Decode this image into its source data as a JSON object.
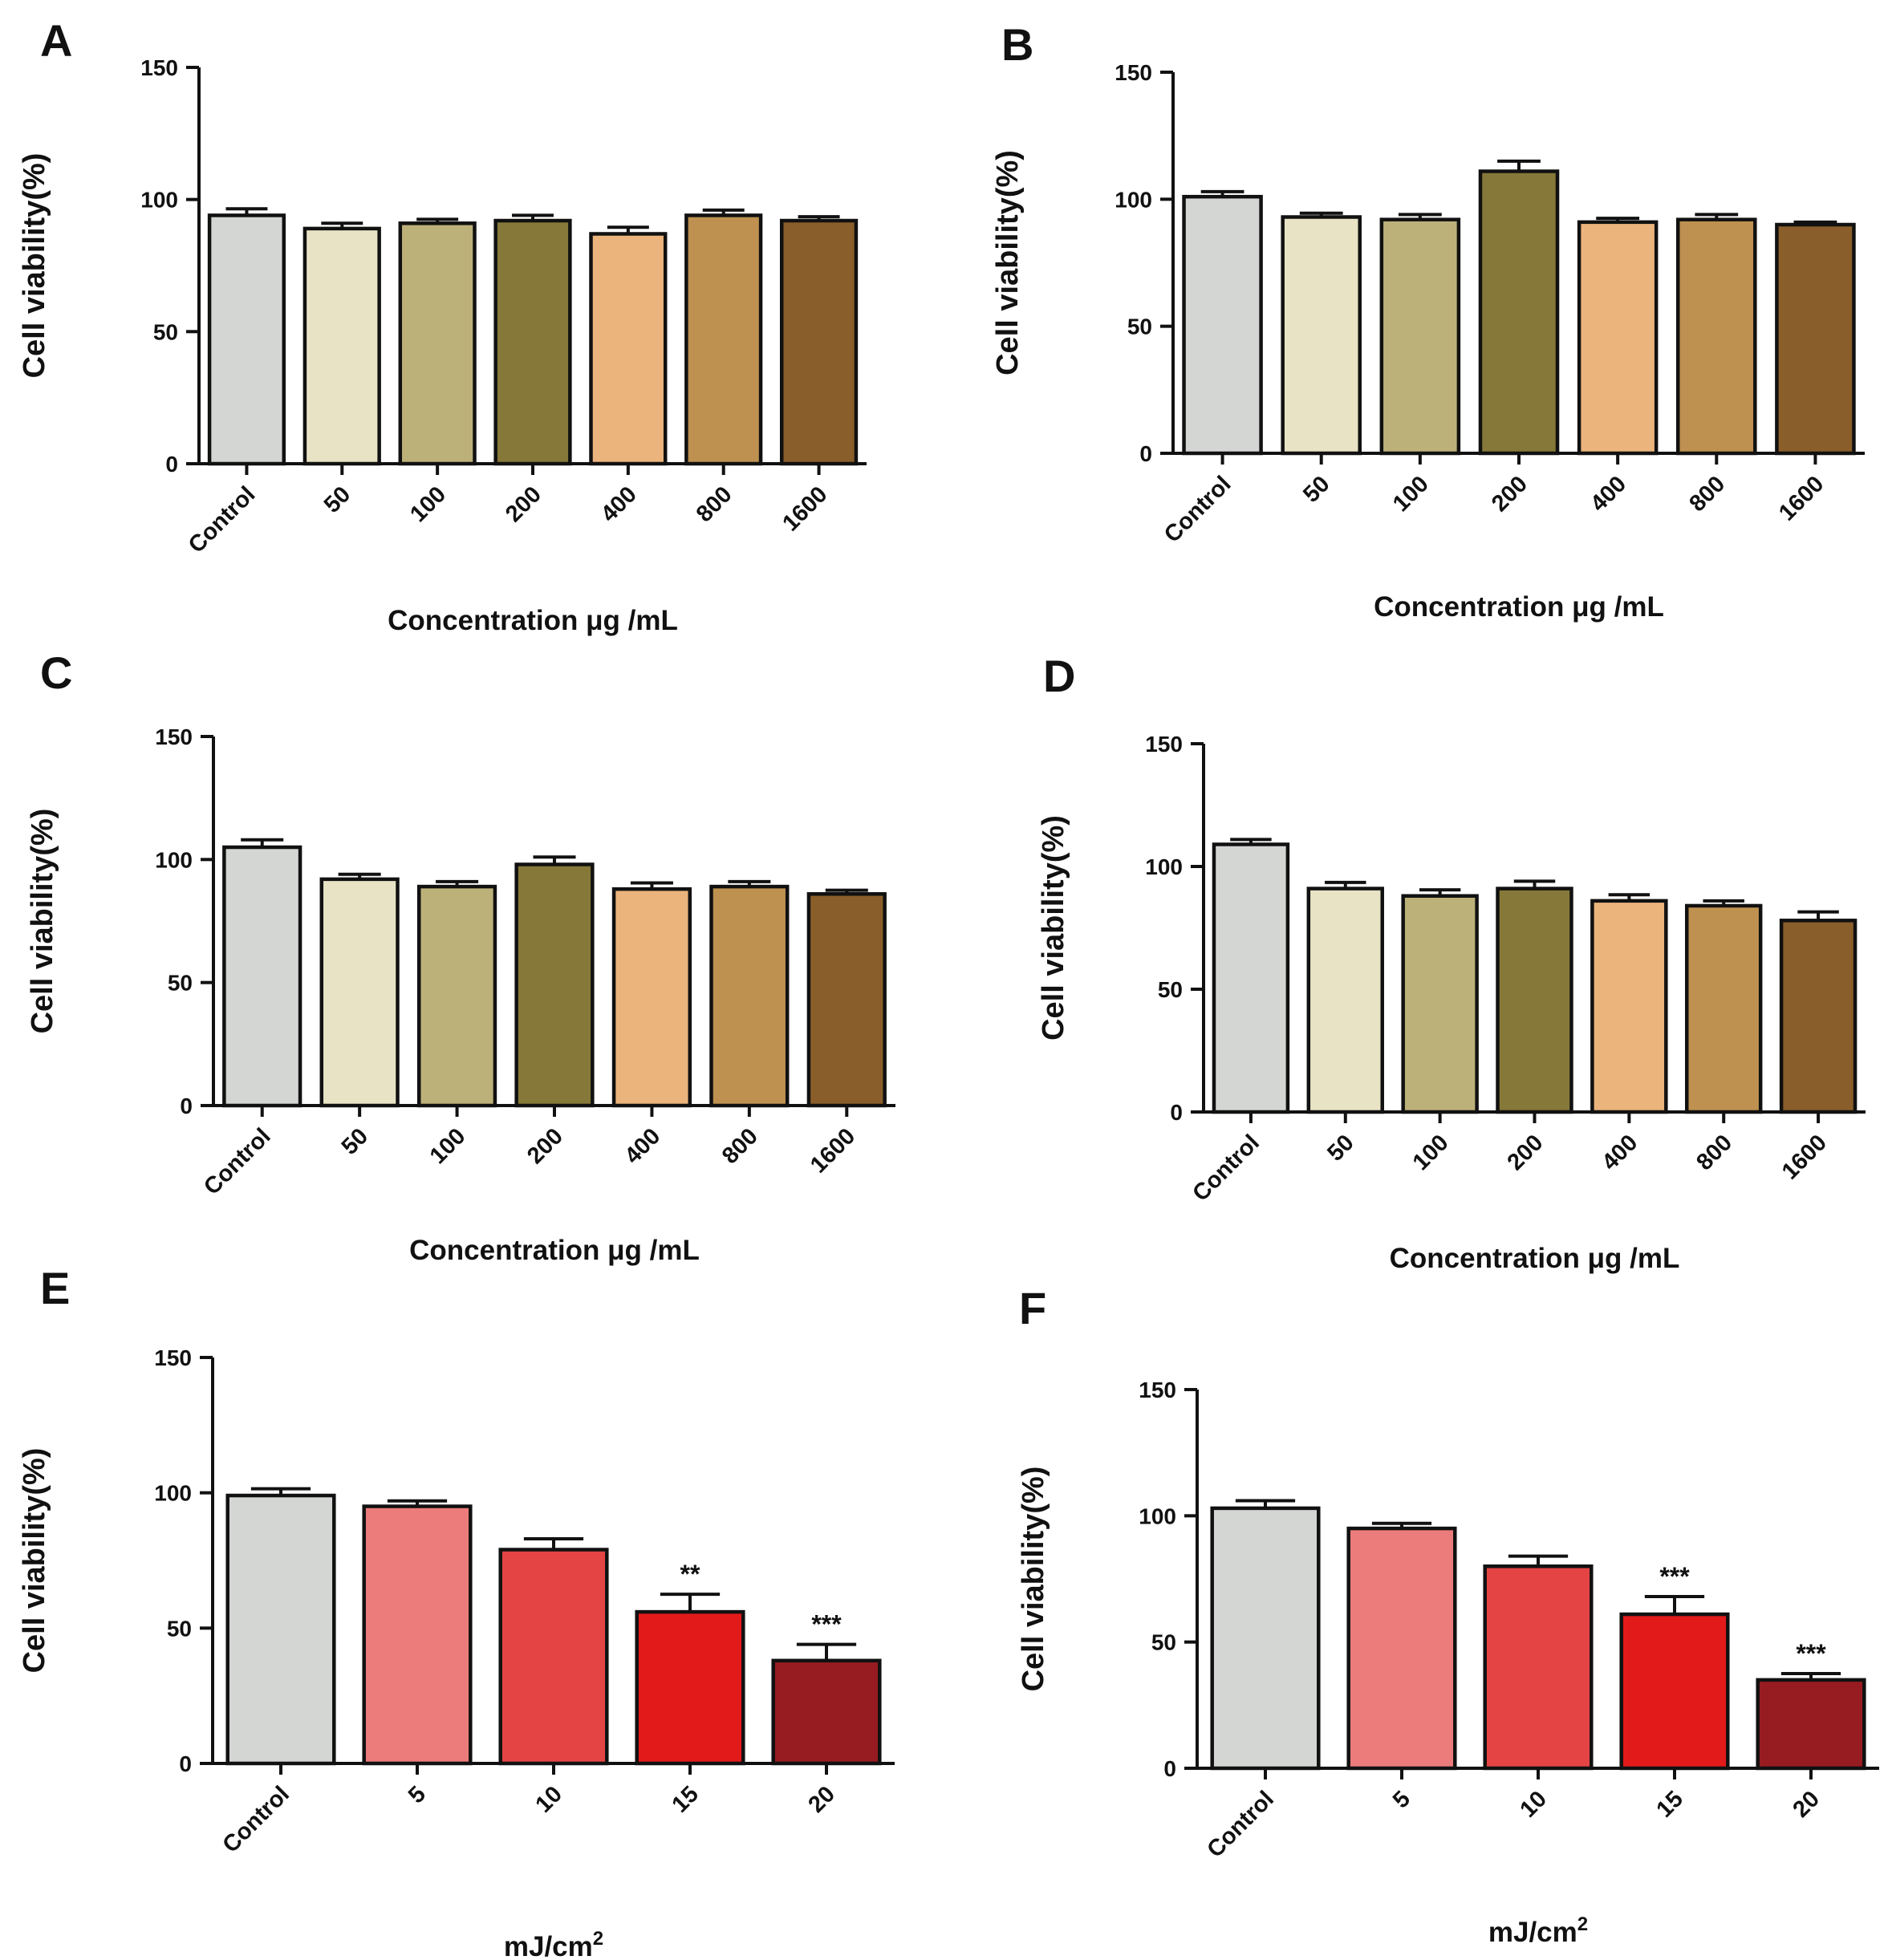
{
  "colors": {
    "concentration": [
      "#d4d6d4",
      "#e9e3c6",
      "#bdb17a",
      "#867838",
      "#ebb47c",
      "#be9150",
      "#8a5e2a"
    ],
    "uv": [
      "#d4d6d4",
      "#ec7b7b",
      "#e44444",
      "#e31a1a",
      "#961c22"
    ],
    "outline": "#111111"
  },
  "chart_data": [
    {
      "type": "bar",
      "panel": "A",
      "categories": [
        "Control",
        "50",
        "100",
        "200",
        "400",
        "800",
        "1600"
      ],
      "values": [
        94,
        89,
        91,
        92,
        87,
        94,
        92
      ],
      "errors": [
        2.5,
        2,
        1.5,
        2,
        2.5,
        2,
        1.5
      ],
      "annotations": [
        "",
        "",
        "",
        "",
        "",
        "",
        ""
      ],
      "xlabel": "Concentration μg /mL",
      "xlabel_sup": "",
      "ylabel": "Cell viability(%)",
      "ylim": [
        0,
        150
      ],
      "yticks": [
        0,
        50,
        100,
        150
      ],
      "palette": "concentration"
    },
    {
      "type": "bar",
      "panel": "B",
      "categories": [
        "Control",
        "50",
        "100",
        "200",
        "400",
        "800",
        "1600"
      ],
      "values": [
        101,
        93,
        92,
        111,
        91,
        92,
        90
      ],
      "errors": [
        2,
        1.5,
        2,
        4,
        1.5,
        2,
        1
      ],
      "annotations": [
        "",
        "",
        "",
        "",
        "",
        "",
        ""
      ],
      "xlabel": "Concentration μg /mL",
      "xlabel_sup": "",
      "ylabel": "Cell viability(%)",
      "ylim": [
        0,
        150
      ],
      "yticks": [
        0,
        50,
        100,
        150
      ],
      "palette": "concentration"
    },
    {
      "type": "bar",
      "panel": "C",
      "categories": [
        "Control",
        "50",
        "100",
        "200",
        "400",
        "800",
        "1600"
      ],
      "values": [
        105,
        92,
        89,
        98,
        88,
        89,
        86
      ],
      "errors": [
        3,
        2,
        2,
        3,
        2.5,
        2,
        1.5
      ],
      "annotations": [
        "",
        "",
        "",
        "",
        "",
        "",
        ""
      ],
      "xlabel": "Concentration μg /mL",
      "xlabel_sup": "",
      "ylabel": "Cell viability(%)",
      "ylim": [
        0,
        150
      ],
      "yticks": [
        0,
        50,
        100,
        150
      ],
      "palette": "concentration"
    },
    {
      "type": "bar",
      "panel": "D",
      "categories": [
        "Control",
        "50",
        "100",
        "200",
        "400",
        "800",
        "1600"
      ],
      "values": [
        109,
        91,
        88,
        91,
        86,
        84,
        78
      ],
      "errors": [
        2,
        2.5,
        2.5,
        3,
        2.5,
        2,
        3.5
      ],
      "annotations": [
        "",
        "",
        "",
        "",
        "",
        "",
        ""
      ],
      "xlabel": "Concentration μg /mL",
      "xlabel_sup": "",
      "ylabel": "Cell viability(%)",
      "ylim": [
        0,
        150
      ],
      "yticks": [
        0,
        50,
        100,
        150
      ],
      "palette": "concentration"
    },
    {
      "type": "bar",
      "panel": "E",
      "categories": [
        "Control",
        "5",
        "10",
        "15",
        "20"
      ],
      "values": [
        99,
        95,
        79,
        56,
        38
      ],
      "errors": [
        2.5,
        2,
        4,
        6.5,
        6
      ],
      "annotations": [
        "",
        "",
        "",
        "**",
        "***"
      ],
      "xlabel": "mJ/cm",
      "xlabel_sup": "2",
      "ylabel": "Cell viability(%)",
      "ylim": [
        0,
        150
      ],
      "yticks": [
        0,
        50,
        100,
        150
      ],
      "palette": "uv"
    },
    {
      "type": "bar",
      "panel": "F",
      "categories": [
        "Control",
        "5",
        "10",
        "15",
        "20"
      ],
      "values": [
        103,
        95,
        80,
        61,
        35
      ],
      "errors": [
        3,
        2,
        4,
        7,
        2.5
      ],
      "annotations": [
        "",
        "",
        "",
        "***",
        "***"
      ],
      "xlabel": "mJ/cm",
      "xlabel_sup": "2",
      "ylabel": "Cell viability(%)",
      "ylim": [
        0,
        150
      ],
      "yticks": [
        0,
        50,
        100,
        150
      ],
      "palette": "uv"
    }
  ]
}
